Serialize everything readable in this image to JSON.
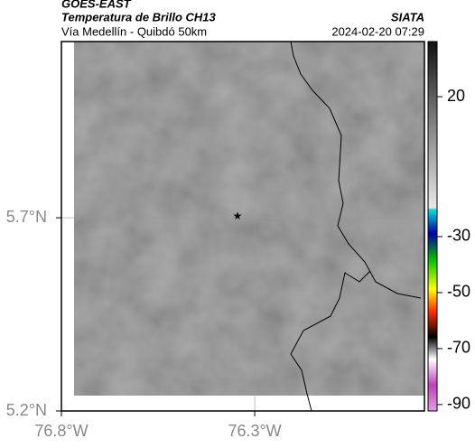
{
  "header": {
    "source": "GOES-EAST",
    "title": "Temperatura de Brillo CH13",
    "subtitle": "Vía Medellín - Quibdó 50km",
    "brand": "SIATA",
    "timestamp": "2024-02-20 07:29"
  },
  "map": {
    "latlim": [
      5.2,
      6.156
    ],
    "lonlim": [
      -76.8,
      -75.861
    ],
    "latticks": [
      {
        "value": 5.2,
        "label": "5.2°N"
      },
      {
        "value": 5.7,
        "label": "5.7°N"
      }
    ],
    "lonticks": [
      {
        "value": -76.8,
        "label": "76.8°W"
      },
      {
        "value": -76.3,
        "label": "76.3°W"
      }
    ],
    "grid": true
  },
  "colorbar": {
    "lim": [
      -92.3,
      39.7
    ],
    "ticks": [
      20,
      -30,
      -50,
      -70,
      -90
    ]
  }
}
